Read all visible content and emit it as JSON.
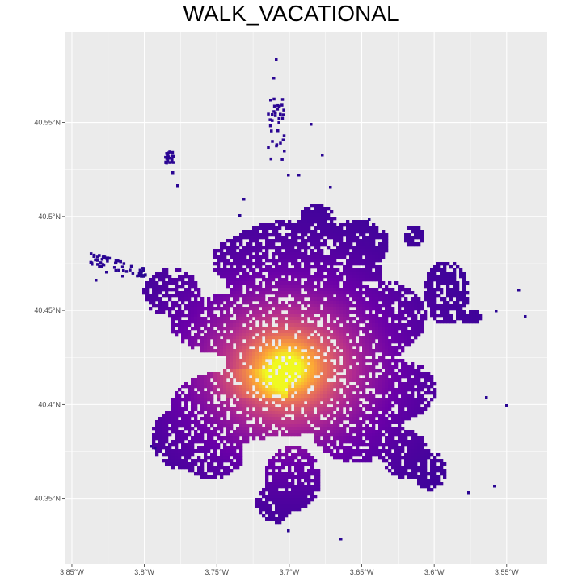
{
  "chart_data": {
    "type": "map",
    "title": "WALK_VACATIONAL",
    "xlabel": "",
    "ylabel": "",
    "x_ticks": [
      {
        "value": -3.85,
        "label": "3.85°W"
      },
      {
        "value": -3.8,
        "label": "3.8°W"
      },
      {
        "value": -3.75,
        "label": "3.75°W"
      },
      {
        "value": -3.7,
        "label": "3.7°W"
      },
      {
        "value": -3.65,
        "label": "3.65°W"
      },
      {
        "value": -3.6,
        "label": "3.6°W"
      },
      {
        "value": -3.55,
        "label": "3.55°W"
      }
    ],
    "y_ticks": [
      {
        "value": 40.35,
        "label": "40.35°N"
      },
      {
        "value": 40.4,
        "label": "40.4°N"
      },
      {
        "value": 40.45,
        "label": "40.45°N"
      },
      {
        "value": 40.5,
        "label": "40.5°N"
      },
      {
        "value": 40.55,
        "label": "40.55°N"
      }
    ],
    "xlim": [
      -3.855,
      -3.522
    ],
    "ylim": [
      40.315,
      40.598
    ],
    "grid": true,
    "legend": "none",
    "colors": {
      "panel": "#ebebeb",
      "grid": "#ffffff",
      "low": "#2a0593",
      "mid1": "#6a00a8",
      "mid2": "#b12a90",
      "mid3": "#e16462",
      "mid4": "#fca636",
      "high": "#f0f921"
    },
    "hotspot": {
      "lon": -3.703,
      "lat": 40.42
    }
  }
}
